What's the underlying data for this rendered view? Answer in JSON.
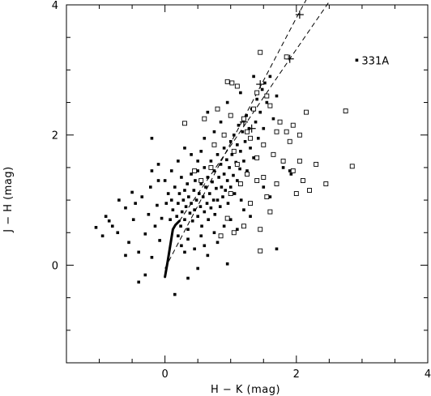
{
  "chart_data": {
    "type": "scatter",
    "title": "",
    "xlabel": "H − K (mag)",
    "ylabel": "J − H (mag)",
    "xlim": [
      -1.5,
      4
    ],
    "ylim": [
      -1.5,
      4
    ],
    "x_ticks": [
      0,
      2,
      4
    ],
    "y_ticks": [
      0,
      2,
      4
    ],
    "x_tick_labels": [
      "0",
      "2",
      "4"
    ],
    "y_tick_labels": [
      "0",
      "2",
      "4"
    ],
    "grid": false,
    "legend": "none",
    "annotation": {
      "text": "331A",
      "x": 2.92,
      "y": 3.15
    },
    "dwarf_locus": [
      [
        0.0,
        -0.18
      ],
      [
        0.04,
        0.05
      ],
      [
        0.08,
        0.3
      ],
      [
        0.12,
        0.55
      ],
      [
        0.16,
        0.62
      ],
      [
        0.22,
        0.68
      ]
    ],
    "reddening_lines": [
      [
        [
          0.0,
          -0.05
        ],
        [
          2.0,
          3.8
        ],
        [
          2.35,
          4.45
        ]
      ],
      [
        [
          0.22,
          0.68
        ],
        [
          1.9,
          3.17
        ],
        [
          2.5,
          4.05
        ]
      ]
    ],
    "reddening_markers": [
      [
        2.05,
        3.85
      ],
      [
        1.45,
        2.78
      ],
      [
        1.2,
        2.2
      ],
      [
        1.9,
        3.17
      ],
      [
        1.32,
        2.1
      ]
    ],
    "series": [
      {
        "marker": "filled-square",
        "points": [
          [
            -1.05,
            0.58
          ],
          [
            -0.9,
            0.75
          ],
          [
            -0.8,
            0.6
          ],
          [
            -0.72,
            0.5
          ],
          [
            -0.6,
            0.88
          ],
          [
            -0.55,
            0.35
          ],
          [
            -0.48,
            0.7
          ],
          [
            -0.45,
            0.95
          ],
          [
            -0.4,
            0.2
          ],
          [
            -0.35,
            1.05
          ],
          [
            -0.3,
            0.48
          ],
          [
            -0.25,
            0.78
          ],
          [
            -0.22,
            1.2
          ],
          [
            -0.2,
            0.12
          ],
          [
            -0.15,
            0.6
          ],
          [
            -0.12,
            0.92
          ],
          [
            -0.1,
            1.3
          ],
          [
            -0.08,
            0.38
          ],
          [
            -0.05,
            0.72
          ],
          [
            -0.3,
            -0.15
          ],
          [
            -0.4,
            -0.26
          ],
          [
            -0.6,
            0.15
          ],
          [
            -0.85,
            0.68
          ],
          [
            -0.95,
            0.45
          ],
          [
            -0.7,
            1.0
          ],
          [
            -0.5,
            1.12
          ],
          [
            -0.2,
            1.45
          ],
          [
            -0.1,
            1.55
          ],
          [
            0.0,
            1.3
          ],
          [
            0.05,
            1.1
          ],
          [
            -0.2,
            1.95
          ],
          [
            0.02,
            0.95
          ],
          [
            0.08,
            0.7
          ],
          [
            0.1,
            1.0
          ],
          [
            0.12,
            0.85
          ],
          [
            0.15,
            1.2
          ],
          [
            0.18,
            0.75
          ],
          [
            0.2,
            0.95
          ],
          [
            0.22,
            1.1
          ],
          [
            0.24,
            0.6
          ],
          [
            0.25,
            1.35
          ],
          [
            0.26,
            0.82
          ],
          [
            0.28,
            1.0
          ],
          [
            0.3,
            0.7
          ],
          [
            0.3,
            1.15
          ],
          [
            0.32,
            0.9
          ],
          [
            0.34,
            1.25
          ],
          [
            0.35,
            0.55
          ],
          [
            0.36,
            1.05
          ],
          [
            0.38,
            0.8
          ],
          [
            0.4,
            1.4
          ],
          [
            0.4,
            0.95
          ],
          [
            0.42,
            0.68
          ],
          [
            0.44,
            1.15
          ],
          [
            0.45,
            0.85
          ],
          [
            0.46,
            1.3
          ],
          [
            0.48,
            1.0
          ],
          [
            0.5,
            0.75
          ],
          [
            0.5,
            1.45
          ],
          [
            0.52,
            1.1
          ],
          [
            0.54,
            0.9
          ],
          [
            0.55,
            1.25
          ],
          [
            0.56,
            0.6
          ],
          [
            0.58,
            1.05
          ],
          [
            0.6,
            1.5
          ],
          [
            0.6,
            0.82
          ],
          [
            0.62,
            1.2
          ],
          [
            0.64,
            0.95
          ],
          [
            0.65,
            1.35
          ],
          [
            0.66,
            0.7
          ],
          [
            0.68,
            1.1
          ],
          [
            0.7,
            1.6
          ],
          [
            0.7,
            0.88
          ],
          [
            0.72,
            1.28
          ],
          [
            0.74,
            1.0
          ],
          [
            0.75,
            1.45
          ],
          [
            0.76,
            0.78
          ],
          [
            0.78,
            1.18
          ],
          [
            0.8,
            1.7
          ],
          [
            0.8,
            1.0
          ],
          [
            0.82,
            1.35
          ],
          [
            0.84,
            0.9
          ],
          [
            0.85,
            1.55
          ],
          [
            0.86,
            1.2
          ],
          [
            0.88,
            1.05
          ],
          [
            0.9,
            1.8
          ],
          [
            0.9,
            1.4
          ],
          [
            0.92,
            1.15
          ],
          [
            0.94,
            1.62
          ],
          [
            0.95,
            1.3
          ],
          [
            0.96,
            0.95
          ],
          [
            0.98,
            1.5
          ],
          [
            1.0,
            1.9
          ],
          [
            1.0,
            1.2
          ],
          [
            1.02,
            1.7
          ],
          [
            1.04,
            1.38
          ],
          [
            1.05,
            2.0
          ],
          [
            1.06,
            1.1
          ],
          [
            1.08,
            1.58
          ],
          [
            1.1,
            1.85
          ],
          [
            1.1,
            1.3
          ],
          [
            1.12,
            2.15
          ],
          [
            1.14,
            1.48
          ],
          [
            1.15,
            1.75
          ],
          [
            1.16,
            1.0
          ],
          [
            1.18,
            2.05
          ],
          [
            1.2,
            1.6
          ],
          [
            1.22,
            1.9
          ],
          [
            1.24,
            2.3
          ],
          [
            1.25,
            1.45
          ],
          [
            1.28,
            2.1
          ],
          [
            1.3,
            1.8
          ],
          [
            1.32,
            2.4
          ],
          [
            1.35,
            1.65
          ],
          [
            1.38,
            2.2
          ],
          [
            1.4,
            2.55
          ],
          [
            1.42,
            1.95
          ],
          [
            1.45,
            2.35
          ],
          [
            1.48,
            2.7
          ],
          [
            1.5,
            2.1
          ],
          [
            1.52,
            2.8
          ],
          [
            1.55,
            2.5
          ],
          [
            1.6,
            2.9
          ],
          [
            1.65,
            2.25
          ],
          [
            1.7,
            2.6
          ],
          [
            0.2,
            0.45
          ],
          [
            0.25,
            0.3
          ],
          [
            0.3,
            0.2
          ],
          [
            0.35,
            0.4
          ],
          [
            0.45,
            0.25
          ],
          [
            0.55,
            0.45
          ],
          [
            0.6,
            0.3
          ],
          [
            0.65,
            0.15
          ],
          [
            0.75,
            0.5
          ],
          [
            0.8,
            0.35
          ],
          [
            0.9,
            0.6
          ],
          [
            1.0,
            0.7
          ],
          [
            1.1,
            0.55
          ],
          [
            1.2,
            0.85
          ],
          [
            1.3,
            0.75
          ],
          [
            1.5,
            1.2
          ],
          [
            1.6,
            1.05
          ],
          [
            1.8,
            1.5
          ],
          [
            1.7,
            0.25
          ],
          [
            0.5,
            -0.05
          ],
          [
            0.95,
            0.02
          ],
          [
            0.35,
            -0.2
          ],
          [
            0.15,
            -0.45
          ],
          [
            0.6,
            1.95
          ],
          [
            0.4,
            1.7
          ],
          [
            0.2,
            1.6
          ],
          [
            0.55,
            1.75
          ],
          [
            0.85,
            2.2
          ],
          [
            0.75,
            2.05
          ],
          [
            0.1,
            1.45
          ],
          [
            0.5,
            1.6
          ],
          [
            0.3,
            1.8
          ],
          [
            0.65,
            2.35
          ],
          [
            0.95,
            2.5
          ],
          [
            1.15,
            2.65
          ],
          [
            1.35,
            2.9
          ],
          [
            1.9,
            1.45
          ],
          [
            1.92,
            1.4
          ],
          [
            2.92,
            3.15
          ]
        ]
      },
      {
        "marker": "open-square",
        "points": [
          [
            1.45,
            3.27
          ],
          [
            1.85,
            3.2
          ],
          [
            0.95,
            2.82
          ],
          [
            1.02,
            2.8
          ],
          [
            1.1,
            2.75
          ],
          [
            1.55,
            2.6
          ],
          [
            1.4,
            2.65
          ],
          [
            2.15,
            2.35
          ],
          [
            2.75,
            2.37
          ],
          [
            0.3,
            2.18
          ],
          [
            0.6,
            2.25
          ],
          [
            0.8,
            2.4
          ],
          [
            1.0,
            2.3
          ],
          [
            1.2,
            2.25
          ],
          [
            1.35,
            2.4
          ],
          [
            1.6,
            2.45
          ],
          [
            1.75,
            2.2
          ],
          [
            1.85,
            2.05
          ],
          [
            1.95,
            2.15
          ],
          [
            2.05,
            2.0
          ],
          [
            1.3,
            1.95
          ],
          [
            1.5,
            1.85
          ],
          [
            1.65,
            1.7
          ],
          [
            1.8,
            1.6
          ],
          [
            1.95,
            1.45
          ],
          [
            2.1,
            1.3
          ],
          [
            2.2,
            1.15
          ],
          [
            2.45,
            1.25
          ],
          [
            2.85,
            1.52
          ],
          [
            2.3,
            1.55
          ],
          [
            2.05,
            1.6
          ],
          [
            1.4,
            1.65
          ],
          [
            1.1,
            1.55
          ],
          [
            1.25,
            1.4
          ],
          [
            1.15,
            1.25
          ],
          [
            1.0,
            1.1
          ],
          [
            1.3,
            0.95
          ],
          [
            1.55,
            1.05
          ],
          [
            1.6,
            0.82
          ],
          [
            1.45,
            0.55
          ],
          [
            1.45,
            0.22
          ],
          [
            1.05,
            0.5
          ],
          [
            0.95,
            0.72
          ],
          [
            1.2,
            0.6
          ],
          [
            0.85,
            0.45
          ],
          [
            1.5,
            1.35
          ],
          [
            1.7,
            1.25
          ],
          [
            2.0,
            1.1
          ],
          [
            0.7,
            1.5
          ],
          [
            0.55,
            1.3
          ],
          [
            1.05,
            1.75
          ],
          [
            1.9,
            1.9
          ],
          [
            1.7,
            2.05
          ],
          [
            0.75,
            1.85
          ],
          [
            0.45,
            1.45
          ],
          [
            1.25,
            2.05
          ],
          [
            0.9,
            2.0
          ],
          [
            1.4,
            1.3
          ]
        ]
      }
    ]
  }
}
